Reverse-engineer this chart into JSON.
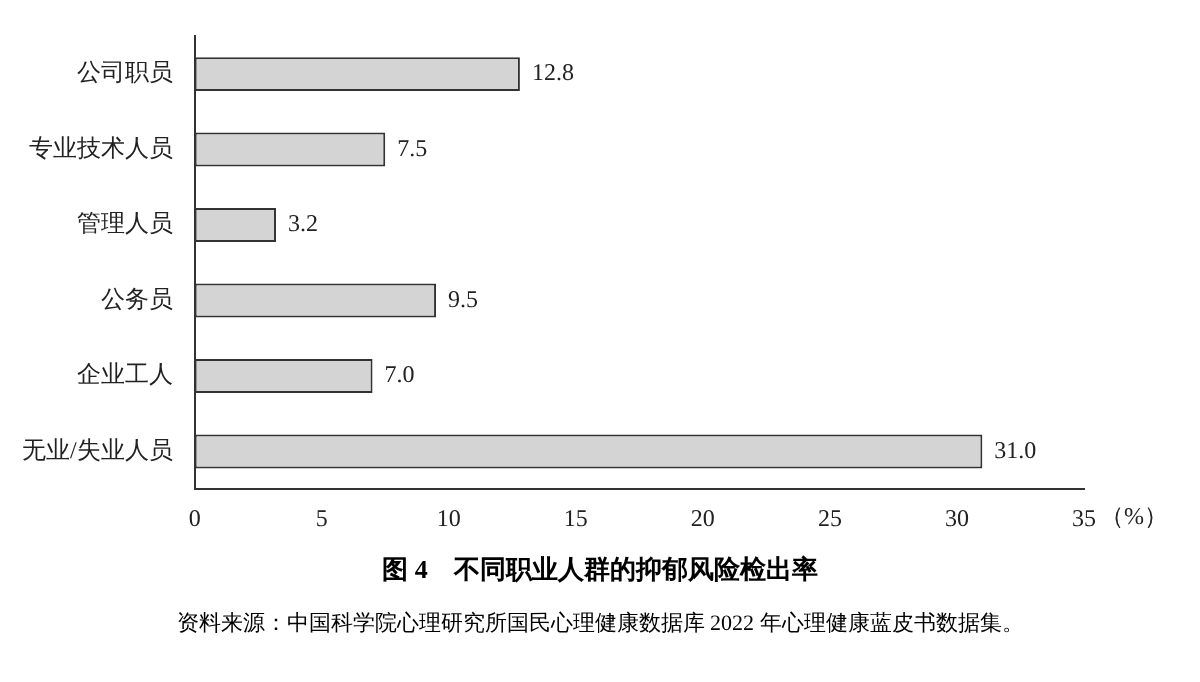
{
  "chart_data": {
    "type": "bar",
    "orientation": "horizontal",
    "title": "图 4　不同职业人群的抑郁风险检出率",
    "xlabel": "（%）",
    "categories": [
      "公司职员",
      "专业技术人员",
      "管理人员",
      "公务员",
      "企业工人",
      "无业/失业人员"
    ],
    "values": [
      12.8,
      7.5,
      3.2,
      9.5,
      7.0,
      31.0
    ],
    "value_labels": [
      "12.8",
      "7.5",
      "3.2",
      "9.5",
      "7.0",
      "31.0"
    ],
    "color": "#d4d4d4",
    "xlim": [
      0,
      35
    ],
    "xticks": [
      0,
      5,
      10,
      15,
      20,
      25,
      30,
      35
    ],
    "grid": false,
    "legend": false,
    "annotations": [
      "资料来源：中国科学院心理研究所国民心理健康数据库 2022 年心理健康蓝皮书数据集。"
    ]
  }
}
